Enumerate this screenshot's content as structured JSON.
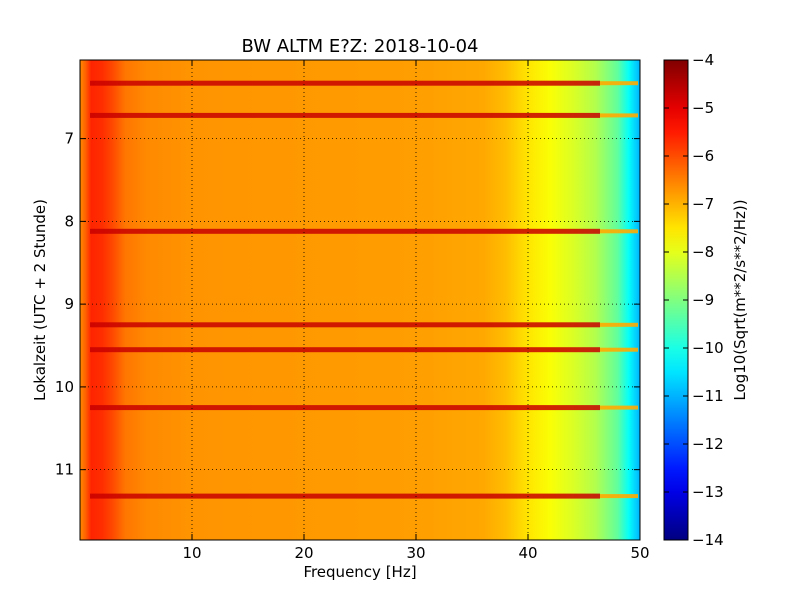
{
  "chart_data": {
    "type": "heatmap",
    "title": "BW ALTM E?Z: 2018-10-04",
    "xlabel": "Frequency [Hz]",
    "ylabel": "Lokalzeit (UTC + 2 Stunde)",
    "xlim": [
      0,
      50
    ],
    "ylim": [
      11.85,
      6.05
    ],
    "y_inverted": true,
    "x_ticks": [
      10,
      20,
      30,
      40,
      50
    ],
    "x_tick_labels": [
      "10",
      "20",
      "30",
      "40",
      "50"
    ],
    "y_ticks": [
      7,
      8,
      9,
      10,
      11
    ],
    "y_tick_labels": [
      "7",
      "8",
      "9",
      "10",
      "11"
    ],
    "grid": true,
    "colormap": "jet",
    "colorbar": {
      "label": "Log10(Sqrt(m**2/s**2/Hz))",
      "range": [
        -14,
        -4
      ],
      "ticks": [
        -4,
        -5,
        -6,
        -7,
        -8,
        -9,
        -10,
        -11,
        -12,
        -13,
        -14
      ],
      "tick_labels": [
        "−4",
        "−5",
        "−6",
        "−7",
        "−8",
        "−9",
        "−10",
        "−11",
        "−12",
        "−13",
        "−14"
      ]
    },
    "horizontal_bands_time": [
      6.33,
      6.72,
      8.12,
      9.25,
      9.55,
      10.25,
      11.32
    ],
    "spectral_profile": {
      "frequency_hz": [
        0,
        0.5,
        1,
        2,
        3,
        4,
        6,
        10,
        20,
        30,
        36,
        38,
        40,
        42,
        44,
        46,
        48,
        49,
        50
      ],
      "level": [
        -6.6,
        -6.2,
        -5.6,
        -5.7,
        -6.0,
        -6.4,
        -6.6,
        -6.7,
        -6.75,
        -6.8,
        -6.9,
        -7.1,
        -7.5,
        -7.8,
        -8.1,
        -8.5,
        -9.3,
        -10.2,
        -11.0
      ]
    }
  }
}
